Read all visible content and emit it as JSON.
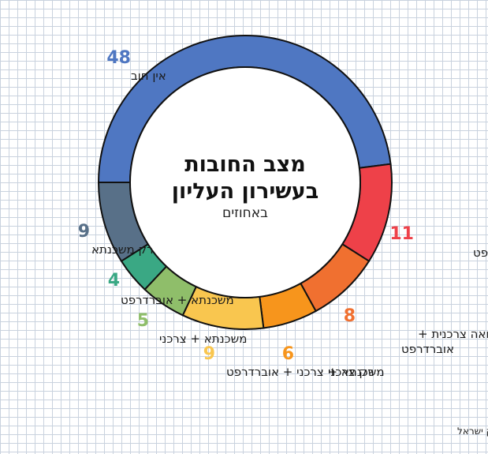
{
  "chart_data": {
    "type": "pie",
    "style": "donut",
    "title_line1": "מצב החובות",
    "title_line2": "בעשירון העליון",
    "subtitle": "באחוזים",
    "source": "מקור: מערכת נתוני אשראי, בנק ישראל",
    "slices": [
      {
        "value": 48,
        "label": "אין חוב",
        "color": "#4f77c2"
      },
      {
        "value": 11,
        "label": "רק אוברדראפט",
        "color": "#ee4149"
      },
      {
        "value": 8,
        "label_line1": "הלוואה צרכנית +",
        "label_line2": "אוברדרפט",
        "color": "#f07030"
      },
      {
        "value": 6,
        "label": "רק צרכני",
        "color": "#f7951c"
      },
      {
        "value": 9,
        "label": "משכנתא + צרכני + אוברדרפט",
        "color": "#f9c64f"
      },
      {
        "value": 5,
        "label": "משכנתא + צרכני",
        "color": "#8fbe6a"
      },
      {
        "value": 4,
        "label": "משכנתא + אוברדרפט",
        "color": "#3aa884"
      },
      {
        "value": 9,
        "label": "רק משכנתא",
        "color": "#587088"
      }
    ]
  }
}
